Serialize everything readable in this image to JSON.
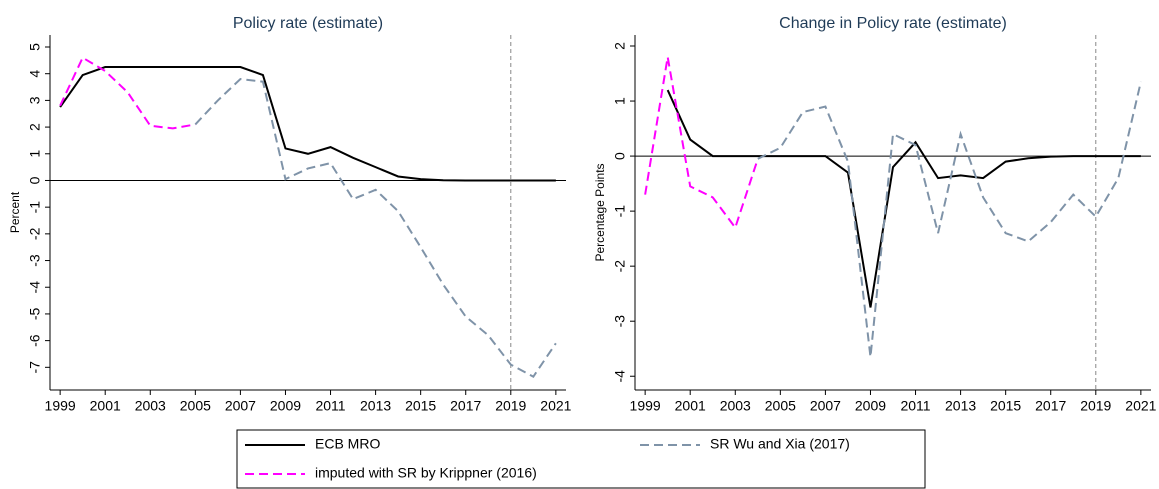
{
  "chart_data": [
    {
      "type": "line",
      "title": "Policy rate (estimate)",
      "y_label": "Percent",
      "x": [
        1999,
        2000,
        2001,
        2002,
        2003,
        2004,
        2005,
        2006,
        2007,
        2008,
        2009,
        2010,
        2011,
        2012,
        2013,
        2014,
        2015,
        2016,
        2017,
        2018,
        2019,
        2020,
        2021
      ],
      "series": [
        {
          "name": "ECB MRO",
          "color": "#000000",
          "dashed": false,
          "values": [
            2.75,
            3.95,
            4.25,
            4.25,
            4.25,
            4.25,
            4.25,
            4.25,
            4.25,
            3.95,
            1.2,
            1.0,
            1.25,
            0.85,
            0.5,
            0.15,
            0.05,
            0.01,
            0,
            0,
            0,
            0,
            0
          ]
        },
        {
          "name": "imputed with SR by Krippner (2016)",
          "color": "#ff00ff",
          "dashed": true,
          "values": [
            2.8,
            4.6,
            4.1,
            3.3,
            2.05,
            1.95,
            2.1,
            null,
            null,
            null,
            null,
            null,
            null,
            null,
            null,
            null,
            null,
            null,
            null,
            null,
            null,
            null,
            null
          ]
        },
        {
          "name": "SR Wu and Xia (2017)",
          "color": "#7f93a8",
          "dashed": true,
          "values": [
            null,
            null,
            null,
            null,
            null,
            null,
            2.1,
            3.0,
            3.8,
            3.7,
            0.05,
            0.45,
            0.65,
            -0.7,
            -0.35,
            -1.15,
            -2.5,
            -3.9,
            -5.1,
            -5.8,
            -6.9,
            -7.35,
            -6.1
          ]
        }
      ],
      "xlim": [
        1998.55,
        2021.45
      ],
      "xticks": [
        1999,
        2001,
        2003,
        2005,
        2007,
        2009,
        2011,
        2013,
        2015,
        2017,
        2019,
        2021
      ],
      "ylim": [
        -7.85,
        5.45
      ],
      "yticks": [
        -7,
        -6,
        -5,
        -4,
        -3,
        -2,
        -1,
        0,
        1,
        2,
        3,
        4,
        5
      ],
      "zero_line": true,
      "vline": 2019
    },
    {
      "type": "line",
      "title": "Change in Policy rate (estimate)",
      "y_label": "Percentage Points",
      "x": [
        1999,
        2000,
        2001,
        2002,
        2003,
        2004,
        2005,
        2006,
        2007,
        2008,
        2009,
        2010,
        2011,
        2012,
        2013,
        2014,
        2015,
        2016,
        2017,
        2018,
        2019,
        2020,
        2021
      ],
      "series": [
        {
          "name": "ECB MRO",
          "color": "#000000",
          "dashed": false,
          "values": [
            null,
            1.2,
            0.3,
            0,
            0,
            0,
            0,
            0,
            0,
            -0.3,
            -2.75,
            -0.2,
            0.25,
            -0.4,
            -0.35,
            -0.4,
            -0.1,
            -0.04,
            -0.01,
            0,
            0,
            0,
            0
          ]
        },
        {
          "name": "imputed with SR by Krippner (2016)",
          "color": "#ff00ff",
          "dashed": true,
          "values": [
            -0.7,
            1.8,
            -0.55,
            -0.75,
            -1.3,
            -0.05,
            null,
            null,
            null,
            null,
            null,
            null,
            null,
            null,
            null,
            null,
            null,
            null,
            null,
            null,
            null,
            null,
            null
          ]
        },
        {
          "name": "SR Wu and Xia (2017)",
          "color": "#7f93a8",
          "dashed": true,
          "values": [
            null,
            null,
            null,
            null,
            null,
            -0.05,
            0.15,
            0.8,
            0.9,
            -0.1,
            -3.65,
            0.4,
            0.2,
            -1.4,
            0.4,
            -0.75,
            -1.4,
            -1.55,
            -1.2,
            -0.7,
            -1.1,
            -0.4,
            1.35
          ]
        }
      ],
      "xlim": [
        1998.55,
        2021.45
      ],
      "xticks": [
        1999,
        2001,
        2003,
        2005,
        2007,
        2009,
        2011,
        2013,
        2015,
        2017,
        2019,
        2021
      ],
      "ylim": [
        -4.25,
        2.2
      ],
      "yticks": [
        -4,
        -3,
        -2,
        -1,
        0,
        1,
        2
      ],
      "zero_line": true,
      "vline": 2019
    }
  ]
}
